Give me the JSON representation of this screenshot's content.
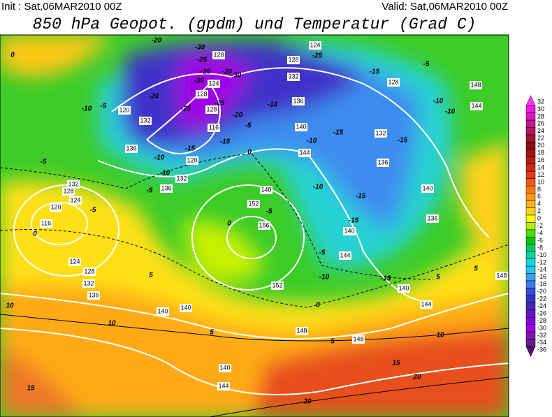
{
  "header": {
    "init": "Init : Sat,06MAR2010 00Z",
    "valid": "Valid: Sat,06MAR2010 00Z",
    "title": "850 hPa Geopot. (gpdm) und Temperatur (Grad C)"
  },
  "colorbar": {
    "levels": [
      32,
      30,
      28,
      26,
      24,
      22,
      20,
      18,
      16,
      14,
      12,
      10,
      8,
      6,
      4,
      2,
      0,
      -2,
      -4,
      -6,
      -8,
      -10,
      -12,
      -14,
      -16,
      -18,
      -20,
      -22,
      -24,
      -26,
      -28,
      -30,
      -32,
      -34,
      -36
    ],
    "colors": [
      "#ff33ff",
      "#f01ee0",
      "#dc14c0",
      "#c8148c",
      "#b41464",
      "#a01432",
      "#8c0a0a",
      "#a01414",
      "#b41e14",
      "#c8281e",
      "#dc3c1e",
      "#f05a1e",
      "#ff7814",
      "#ff9614",
      "#ffb414",
      "#ffd21e",
      "#ffff00",
      "#b4f000",
      "#50dc00",
      "#00c800",
      "#00c864",
      "#00d2a0",
      "#00dcdc",
      "#28c8f0",
      "#3ca0f0",
      "#3c78e6",
      "#3250dc",
      "#3232c8",
      "#4628b4",
      "#6414c8",
      "#8200dc",
      "#a000e6",
      "#8214b4",
      "#641e8c",
      "#50146e"
    ]
  },
  "map": {
    "geopotential_labels": [
      "124",
      "128",
      "128",
      "132",
      "128",
      "148",
      "144",
      "124",
      "128",
      "120",
      "128",
      "132",
      "136",
      "140",
      "116",
      "132",
      "144",
      "136",
      "120",
      "132",
      "136",
      "136",
      "140",
      "148",
      "152",
      "156",
      "136",
      "132",
      "128",
      "124",
      "120",
      "116",
      "124",
      "128",
      "132",
      "136",
      "140",
      "140",
      "152",
      "140",
      "144",
      "140",
      "144",
      "148",
      "148",
      "148",
      "140",
      "144"
    ],
    "temperature_labels": [
      "-20",
      "-30",
      "-25",
      "-25",
      "-20",
      "-30",
      "-30",
      "-20",
      "-10",
      "-5",
      "-25",
      "-25",
      "-20",
      "-5",
      "-10",
      "-25",
      "-15",
      "-5",
      "-10",
      "-10",
      "-15",
      "-10",
      "-15",
      "-15",
      "-15",
      "-10",
      "-10",
      "-5",
      "-5",
      "-5",
      "0",
      "-10",
      "-15",
      "-15",
      "0",
      "0",
      "-5",
      "-5",
      "-10",
      "-15",
      "5",
      "5",
      "5",
      "10",
      "10",
      "15",
      "20",
      "20",
      "15",
      "5",
      "5",
      "10",
      "0",
      "0"
    ]
  }
}
